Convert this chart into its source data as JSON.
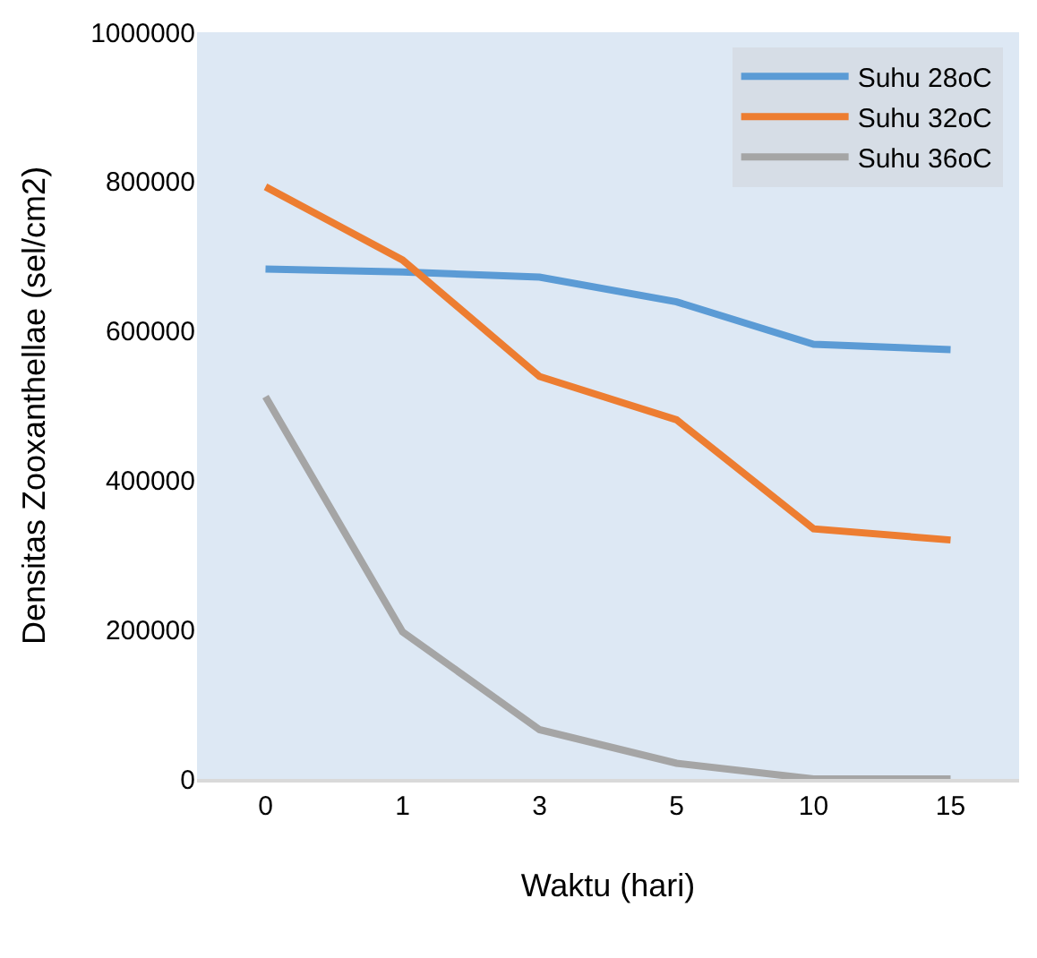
{
  "chart_data": {
    "type": "line",
    "xlabel": "Waktu (hari)",
    "ylabel": "Densitas Zooxanthellae (sel/cm2)",
    "categories": [
      "0",
      "1",
      "3",
      "5",
      "10",
      "15"
    ],
    "series": [
      {
        "name": "Suhu 28oC",
        "color": "#5b9bd5",
        "values": [
          683000,
          679000,
          672000,
          639000,
          582000,
          575000
        ]
      },
      {
        "name": "Suhu 32oC",
        "color": "#ed7d31",
        "values": [
          793000,
          695000,
          539000,
          481000,
          335000,
          320000
        ]
      },
      {
        "name": "Suhu 36oC",
        "color": "#a5a5a5",
        "values": [
          512000,
          197000,
          66000,
          21000,
          0,
          0
        ]
      }
    ],
    "ylim": [
      0,
      1000000
    ],
    "yticks": [
      0,
      200000,
      400000,
      600000,
      800000,
      1000000
    ],
    "grid": false,
    "legend": "top right",
    "marker": "none",
    "line_style": "solid"
  }
}
